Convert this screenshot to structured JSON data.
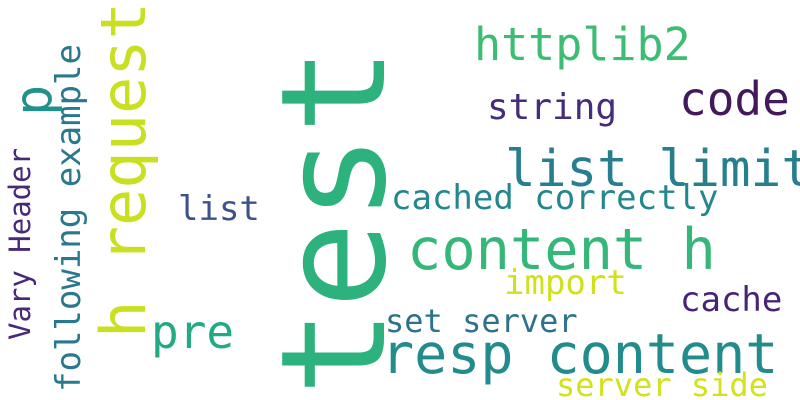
{
  "word_cloud": {
    "background": "#ffffff",
    "words": {
      "test": {
        "text": "test",
        "color": "#2db27d"
      },
      "h_request": {
        "text": "h request",
        "color": "#c8e020"
      },
      "following": {
        "text": "following example",
        "color": "#2a788e"
      },
      "vary": {
        "text": "Vary Header",
        "color": "#482878"
      },
      "p": {
        "text": "p",
        "color": "#21918c"
      },
      "httplib2": {
        "text": "httplib2",
        "color": "#3dbc74"
      },
      "code": {
        "text": "code",
        "color": "#44195b"
      },
      "string": {
        "text": "string",
        "color": "#472c7a"
      },
      "list_limit": {
        "text": "list limit",
        "color": "#277f8e"
      },
      "cached": {
        "text": "cached correctly",
        "color": "#24878e"
      },
      "list": {
        "text": "list",
        "color": "#3b528b"
      },
      "content_h": {
        "text": "content h",
        "color": "#35b779"
      },
      "import": {
        "text": "import",
        "color": "#d0e11c"
      },
      "cache": {
        "text": "cache",
        "color": "#482475"
      },
      "pre": {
        "text": "pre",
        "color": "#23a983"
      },
      "set_server": {
        "text": "set server",
        "color": "#2c728e"
      },
      "resp": {
        "text": "resp content",
        "color": "#228c8d"
      },
      "server_side": {
        "text": "server side",
        "color": "#d2e21b"
      }
    }
  }
}
